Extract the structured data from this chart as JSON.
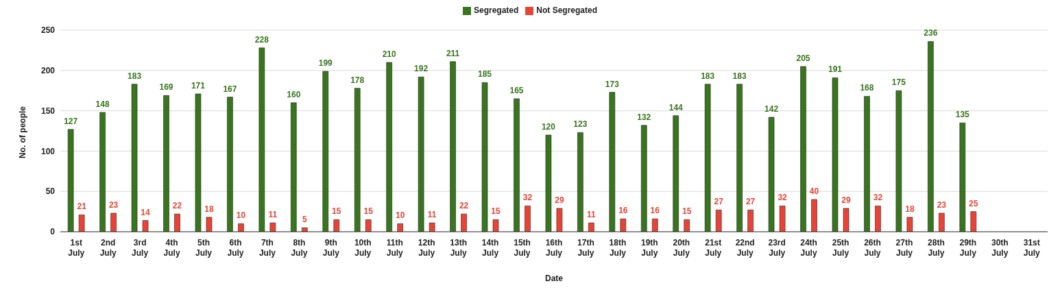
{
  "chart_data": {
    "type": "bar",
    "xlabel": "Date",
    "ylabel": "No. of people",
    "categories": [
      "1st July",
      "2nd July",
      "3rd July",
      "4th July",
      "5th July",
      "6th July",
      "7th July",
      "8th July",
      "9th July",
      "10th July",
      "11th July",
      "12th July",
      "13th July",
      "14th July",
      "15th July",
      "16th July",
      "17th July",
      "18th July",
      "19th July",
      "20th July",
      "21st July",
      "22nd July",
      "23rd July",
      "24th July",
      "25th July",
      "26th July",
      "27th July",
      "28th July",
      "29th July",
      "30th July",
      "31st July"
    ],
    "series": [
      {
        "name": "Segregated",
        "color": "#38761d",
        "values": [
          127,
          148,
          183,
          169,
          171,
          167,
          228,
          160,
          199,
          178,
          210,
          192,
          211,
          185,
          165,
          120,
          123,
          173,
          132,
          144,
          183,
          183,
          142,
          205,
          191,
          168,
          175,
          236,
          135,
          null,
          null
        ]
      },
      {
        "name": "Not Segregated",
        "color": "#ea4335",
        "values": [
          21,
          23,
          14,
          22,
          18,
          10,
          11,
          5,
          15,
          15,
          10,
          11,
          22,
          15,
          32,
          29,
          11,
          16,
          16,
          15,
          27,
          27,
          32,
          40,
          29,
          32,
          18,
          23,
          25,
          null,
          null
        ]
      }
    ],
    "ylim": [
      0,
      250
    ],
    "yticks": [
      0,
      50,
      100,
      150,
      200,
      250
    ],
    "grid": "y",
    "legend": "top",
    "data_labels": true
  }
}
